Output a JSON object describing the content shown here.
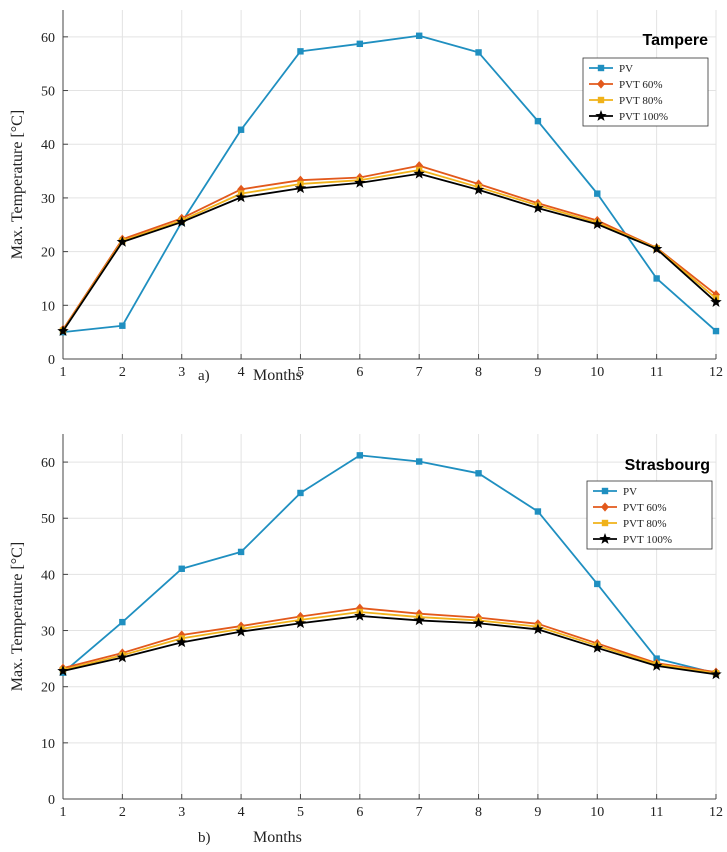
{
  "chart_data": [
    {
      "type": "line",
      "title": "Tampere",
      "caption_letter": "a)",
      "xlabel": "Months",
      "ylabel": "Max. Temperature [°C]",
      "x": [
        1,
        2,
        3,
        4,
        5,
        6,
        7,
        8,
        9,
        10,
        11,
        12
      ],
      "xlim": [
        1,
        12
      ],
      "ylim": [
        0,
        65
      ],
      "yticks": [
        0,
        10,
        20,
        30,
        40,
        50,
        60
      ],
      "grid": true,
      "legend_position": "top-right",
      "series": [
        {
          "name": "PV",
          "color": "#1f8fc0",
          "marker": "square",
          "values": [
            5.0,
            6.2,
            25.5,
            42.7,
            57.3,
            58.7,
            60.2,
            57.1,
            44.3,
            30.8,
            15.0,
            5.2
          ]
        },
        {
          "name": "PVT 60%",
          "color": "#e2591c",
          "marker": "diamond",
          "values": [
            5.5,
            22.3,
            26.2,
            31.6,
            33.3,
            33.8,
            36.0,
            32.6,
            29.0,
            25.8,
            20.7,
            12.0
          ]
        },
        {
          "name": "PVT 80%",
          "color": "#f0b21a",
          "marker": "square",
          "values": [
            5.3,
            22.0,
            25.8,
            30.8,
            32.6,
            33.3,
            35.2,
            32.0,
            28.6,
            25.4,
            20.6,
            11.3
          ]
        },
        {
          "name": "PVT 100%",
          "color": "#000000",
          "marker": "star",
          "values": [
            5.2,
            21.8,
            25.5,
            30.1,
            31.8,
            32.8,
            34.5,
            31.5,
            28.1,
            25.1,
            20.5,
            10.6
          ]
        }
      ]
    },
    {
      "type": "line",
      "title": "Strasbourg",
      "caption_letter": "b)",
      "xlabel": "Months",
      "ylabel": "Max. Temperature [°C]",
      "x": [
        1,
        2,
        3,
        4,
        5,
        6,
        7,
        8,
        9,
        10,
        11,
        12
      ],
      "xlim": [
        1,
        12
      ],
      "ylim": [
        0,
        65
      ],
      "yticks": [
        0,
        10,
        20,
        30,
        40,
        50,
        60
      ],
      "grid": true,
      "legend_position": "top-right",
      "series": [
        {
          "name": "PV",
          "color": "#1f8fc0",
          "marker": "square",
          "values": [
            22.5,
            31.5,
            41.0,
            44.0,
            54.5,
            61.2,
            60.1,
            58.0,
            51.2,
            38.3,
            25.0,
            22.4
          ]
        },
        {
          "name": "PVT 60%",
          "color": "#e2591c",
          "marker": "diamond",
          "values": [
            23.3,
            26.0,
            29.2,
            30.8,
            32.5,
            34.0,
            33.0,
            32.3,
            31.2,
            27.7,
            24.2,
            22.6
          ]
        },
        {
          "name": "PVT 80%",
          "color": "#f0b21a",
          "marker": "square",
          "values": [
            23.0,
            25.6,
            28.6,
            30.3,
            31.9,
            33.3,
            32.4,
            31.8,
            30.7,
            27.3,
            24.0,
            22.4
          ]
        },
        {
          "name": "PVT 100%",
          "color": "#000000",
          "marker": "star",
          "values": [
            22.8,
            25.2,
            27.9,
            29.8,
            31.3,
            32.6,
            31.8,
            31.3,
            30.2,
            26.9,
            23.7,
            22.2
          ]
        }
      ]
    }
  ]
}
